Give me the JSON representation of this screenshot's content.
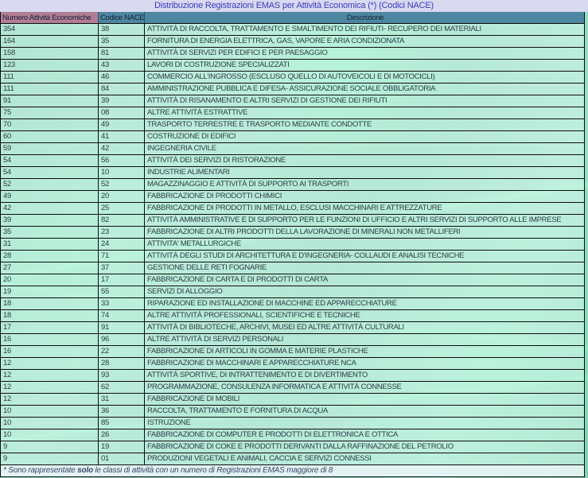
{
  "title": "Distribuzione Registrazioni EMAS per Attività Economica (*) (Codici NACE)",
  "colors": {
    "page_background": "#84d3ba",
    "title_bg": "#d9d9ef",
    "title_text": "#3b3bc4",
    "header_numero_bg": "#b27e96",
    "header_nace_bg": "#4d87a1",
    "header_text": "#16232e",
    "row_border": "#0d0d0d",
    "cell_text": "#2c3e46"
  },
  "table": {
    "headers": [
      "Numero Attività Economiche",
      "Codice NACE",
      "Descrizione"
    ],
    "rows": [
      {
        "num": "354",
        "code": "38",
        "desc": "ATTIVITÀ DI RACCOLTA, TRATTAMENTO E SMALTIMENTO DEI RIFIUTI- RECUPERO DEI MATERIALI"
      },
      {
        "num": "164",
        "code": "35",
        "desc": "FORNITURA DI ENERGIA ELETTRICA, GAS, VAPORE E ARIA CONDIZIONATA"
      },
      {
        "num": "158",
        "code": "81",
        "desc": "ATTIVITÀ DI SERVIZI PER EDIFICI E PER PAESAGGIO"
      },
      {
        "num": "123",
        "code": "43",
        "desc": "LAVORI DI COSTRUZIONE SPECIALIZZATI"
      },
      {
        "num": "111",
        "code": "46",
        "desc": "COMMERCIO ALL'INGROSSO (ESCLUSO QUELLO DI AUTOVEICOLI E DI MOTOCICLI)"
      },
      {
        "num": "111",
        "code": "84",
        "desc": "AMMINISTRAZIONE PUBBLICA E DIFESA- ASSICURAZIONE SOCIALE OBBLIGATORIA"
      },
      {
        "num": "91",
        "code": "39",
        "desc": "ATTIVITÀ DI RISANAMENTO E ALTRI SERVIZI DI GESTIONE DEI RIFIUTI"
      },
      {
        "num": "75",
        "code": "08",
        "desc": "ALTRE ATTIVITÀ ESTRATTIVE"
      },
      {
        "num": "70",
        "code": "49",
        "desc": "TRASPORTO TERRESTRE E TRASPORTO MEDIANTE CONDOTTE"
      },
      {
        "num": "60",
        "code": "41",
        "desc": "COSTRUZIONE DI EDIFICI"
      },
      {
        "num": "59",
        "code": "42",
        "desc": "INGEGNERIA CIVILE"
      },
      {
        "num": "54",
        "code": "56",
        "desc": "ATTIVITÀ DEI SERVIZI DI RISTORAZIONE"
      },
      {
        "num": "54",
        "code": "10",
        "desc": "INDUSTRIE ALIMENTARI"
      },
      {
        "num": "52",
        "code": "52",
        "desc": "MAGAZZINAGGIO E ATTIVITÀ DI SUPPORTO AI TRASPORTI"
      },
      {
        "num": "49",
        "code": "20",
        "desc": "FABBRICAZIONE DI PRODOTTI CHIMICI"
      },
      {
        "num": "42",
        "code": "25",
        "desc": "FABBRICAZIONE DI PRODOTTI IN METALLO, ESCLUSI MACCHINARI E ATTREZZATURE"
      },
      {
        "num": "39",
        "code": "82",
        "desc": "ATTIVITÀ AMMINISTRATIVE E DI SUPPORTO PER LE FUNZIONI DI UFFICIO E ALTRI SERVIZI DI SUPPORTO ALLE IMPRESE"
      },
      {
        "num": "35",
        "code": "23",
        "desc": "FABBRICAZIONE DI ALTRI PRODOTTI DELLA LAVORAZIONE DI MINERALI NON METALLIFERI"
      },
      {
        "num": "31",
        "code": "24",
        "desc": "ATTIVITA' METALLURGICHE"
      },
      {
        "num": "28",
        "code": "71",
        "desc": "ATTIVITÀ DEGLI STUDI DI ARCHITETTURA E D'INGEGNERIA- COLLAUDI E ANALISI TECNICHE"
      },
      {
        "num": "27",
        "code": "37",
        "desc": "GESTIONE DELLE RETI FOGNARIE"
      },
      {
        "num": "20",
        "code": "17",
        "desc": "FABBRICAZIONE DI CARTA E DI PRODOTTI DI CARTA"
      },
      {
        "num": "19",
        "code": "55",
        "desc": "SERVIZI DI ALLOGGIO"
      },
      {
        "num": "18",
        "code": "33",
        "desc": "RIPARAZIONE ED INSTALLAZIONE DI MACCHINE ED APPARECCHIATURE"
      },
      {
        "num": "18",
        "code": "74",
        "desc": "ALTRE ATTIVITÀ PROFESSIONALI, SCIENTIFICHE E TECNICHE"
      },
      {
        "num": "17",
        "code": "91",
        "desc": "ATTIVITÀ DI BIBLIOTECHE, ARCHIVI, MUSEI ED ALTRE ATTIVITÀ CULTURALI"
      },
      {
        "num": "16",
        "code": "96",
        "desc": "ALTRE ATTIVITÀ DI SERVIZI PERSONALI"
      },
      {
        "num": "16",
        "code": "22",
        "desc": "FABBRICAZIONE DI ARTICOLI IN GOMMA E MATERIE PLASTICHE"
      },
      {
        "num": "12",
        "code": "28",
        "desc": "FABBRICAZIONE DI MACCHINARI E APPARECCHIATURE NCA"
      },
      {
        "num": "12",
        "code": "93",
        "desc": "ATTIVITÀ SPORTIVE, DI INTRATTENIMENTO E DI DIVERTIMENTO"
      },
      {
        "num": "12",
        "code": "62",
        "desc": "PROGRAMMAZIONE, CONSULENZA INFORMATICA E ATTIVITÀ CONNESSE"
      },
      {
        "num": "12",
        "code": "31",
        "desc": "FABBRICAZIONE DI MOBILI"
      },
      {
        "num": "10",
        "code": "36",
        "desc": "RACCOLTA, TRATTAMENTO E FORNITURA DI ACQUA"
      },
      {
        "num": "10",
        "code": "85",
        "desc": "ISTRUZIONE"
      },
      {
        "num": "10",
        "code": "26",
        "desc": "FABBRICAZIONE DI COMPUTER E PRODOTTI DI ELETTRONICA E OTTICA"
      },
      {
        "num": "9",
        "code": "19",
        "desc": "FABBRICAZIONE DI COKE E PRODOTTI DERIVANTI DALLA RAFFINAZIONE DEL PETROLIO"
      },
      {
        "num": "9",
        "code": "01",
        "desc": "PRODUZIONI VEGETALI E ANIMALI, CACCIA E SERVIZI CONNESSI"
      }
    ]
  },
  "footnote": {
    "prefix": "* Sono rappresentate ",
    "bold": "solo",
    "suffix": " le classi di attività con un numero di Registrazioni EMAS maggiore di 8"
  }
}
